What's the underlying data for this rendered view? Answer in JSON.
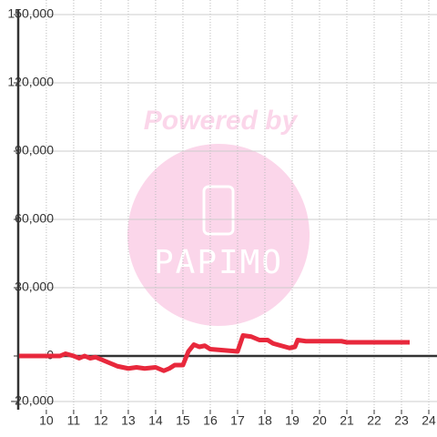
{
  "chart_data": {
    "type": "line",
    "watermark": {
      "title": "Powered by",
      "brand": "PAPIMO"
    },
    "x": [
      9,
      10.5,
      10.7,
      11,
      11.2,
      11.4,
      11.6,
      11.8,
      12,
      12.3,
      12.6,
      13,
      13.3,
      13.6,
      14,
      14.3,
      14.5,
      14.7,
      15,
      15.2,
      15.4,
      15.6,
      15.8,
      16,
      16.5,
      17,
      17.2,
      17.5,
      17.8,
      18.1,
      18.3,
      18.6,
      18.9,
      19.1,
      19.2,
      19.5,
      20,
      20.5,
      20.8,
      21,
      21.5,
      22,
      23.3
    ],
    "series": [
      {
        "color": "#e8283c",
        "values": [
          0,
          0,
          1000,
          0,
          -1000,
          0,
          -1000,
          -500,
          -1500,
          -3000,
          -4500,
          -5500,
          -5000,
          -5500,
          -5000,
          -6500,
          -5500,
          -4000,
          -4000,
          2000,
          5000,
          4000,
          4500,
          3000,
          2500,
          2000,
          9000,
          8500,
          7000,
          7000,
          5500,
          4500,
          3500,
          4000,
          7000,
          6500,
          6500,
          6500,
          6500,
          6000,
          6000,
          6000,
          6000
        ]
      }
    ],
    "xlim": [
      8.97,
      24.3
    ],
    "xticks": [
      10,
      11,
      12,
      13,
      14,
      15,
      16,
      17,
      18,
      19,
      20,
      21,
      22,
      23,
      24
    ],
    "ylim": [
      -20000,
      150000
    ],
    "yticks": [
      {
        "value": -20000,
        "label": "-20,000"
      },
      {
        "value": 0,
        "label": "0"
      },
      {
        "value": 30000,
        "label": "30,000"
      },
      {
        "value": 60000,
        "label": "60,000"
      },
      {
        "value": 90000,
        "label": "90,000"
      },
      {
        "value": 120000,
        "label": "120,000"
      },
      {
        "value": 150000,
        "label": "150,000"
      }
    ],
    "grid": true
  }
}
